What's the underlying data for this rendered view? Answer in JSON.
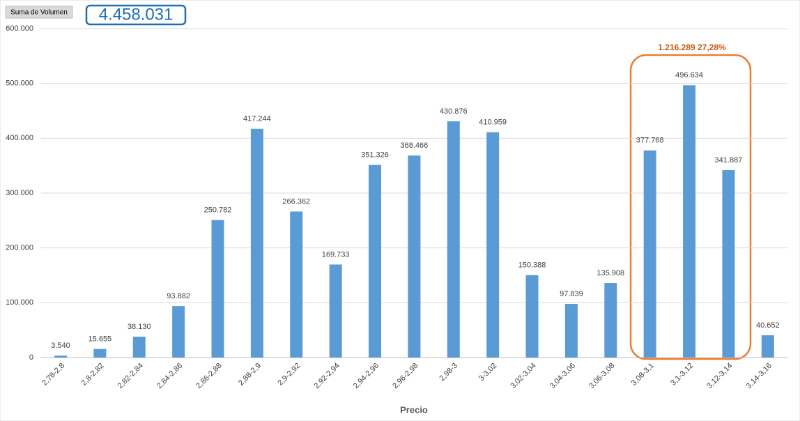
{
  "chart_data": {
    "type": "bar",
    "field_button": "Suma de Volumen",
    "summary": "4.458.031",
    "annotation": "1.216.289 27,28%",
    "x_label": "Precio",
    "categories": [
      "2,78-2,8",
      "2,8-2,82",
      "2,82-2,84",
      "2,84-2,86",
      "2,86-2,88",
      "2,88-2,9",
      "2,9-2,92",
      "2,92-2,94",
      "2,94-2,96",
      "2,96-2,98",
      "2,98-3",
      "3-3,02",
      "3,02-3,04",
      "3,04-3,06",
      "3,06-3,08",
      "3,08-3,1",
      "3,1-3,12",
      "3,12-3,14",
      "3,14-3,16"
    ],
    "values": [
      3540,
      15655,
      38130,
      93882,
      250782,
      417244,
      266362,
      169733,
      351326,
      368466,
      430876,
      410959,
      150388,
      97839,
      135908,
      377768,
      496634,
      341887,
      40652
    ],
    "value_labels": [
      "3.540",
      "15.655",
      "38.130",
      "93.882",
      "250.782",
      "417.244",
      "266.362",
      "169.733",
      "351.326",
      "368.466",
      "430.876",
      "410.959",
      "150.388",
      "97.839",
      "135.908",
      "377.768",
      "496.634",
      "341.887",
      "40.652"
    ],
    "color": "#5b9bd5",
    "ylim": [
      0,
      600000
    ],
    "yticks": [
      0,
      {
        "value": 100000,
        "label": "100.000"
      },
      {
        "value": 200000,
        "label": "200.000"
      },
      {
        "value": 300000,
        "label": "300.000"
      },
      {
        "value": 400000,
        "label": "400.000"
      },
      {
        "value": 500000,
        "label": "500.000"
      },
      {
        "value": 600000,
        "label": "600.000"
      }
    ],
    "grid": true
  }
}
